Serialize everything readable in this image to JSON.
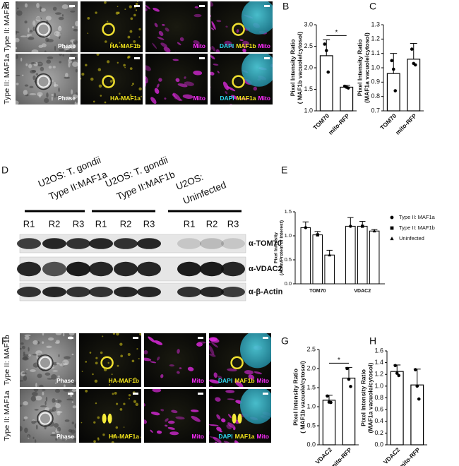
{
  "figure": {
    "A": {
      "label": "A",
      "rows": [
        {
          "title": "Type II: MAF1b",
          "captions": [
            [
              "Phase"
            ],
            [
              "HA-MAF1b"
            ],
            [
              "Mito"
            ],
            [
              "DAPI",
              "MAF1b",
              "Mito"
            ]
          ]
        },
        {
          "title": "Type II: MAF1a",
          "captions": [
            [
              "Phase"
            ],
            [
              "HA-MAF1a"
            ],
            [
              "Mito"
            ],
            [
              "DAPI",
              "MAF1a",
              "Mito"
            ]
          ]
        }
      ]
    },
    "D": {
      "label": "D",
      "groups": [
        {
          "lines": [
            "U2OS: T. gondii",
            "Type II:MAF1a"
          ],
          "lanes": [
            "R1",
            "R2",
            "R3"
          ]
        },
        {
          "lines": [
            "U2OS: T. gondii",
            "Type II:MAF1b"
          ],
          "lanes": [
            "R1",
            "R2",
            "R3"
          ]
        },
        {
          "lines": [
            "U2OS:",
            "Uninfected"
          ],
          "lanes": [
            "R1",
            "R2",
            "R3"
          ]
        }
      ],
      "blots": [
        "α-TOM70",
        "α-VDAC2",
        "α-β-Actin"
      ]
    },
    "F": {
      "label": "F",
      "rows": [
        {
          "title": "Type II: MAF1b",
          "captions": [
            [
              "Phase"
            ],
            [
              "HA-MAF1b"
            ],
            [
              "Mito"
            ],
            [
              "DAPI",
              "MAF1b",
              "Mito"
            ]
          ]
        },
        {
          "title": "Type II: MAF1a",
          "captions": [
            [
              "Phase"
            ],
            [
              "HA-MAF1a"
            ],
            [
              "Mito"
            ],
            [
              "DAPI",
              "MAF1a",
              "Mito"
            ]
          ]
        }
      ]
    }
  },
  "chart_data": [
    {
      "type": "bar",
      "label": "B",
      "ylabel": [
        "Pixel Intensity Ratio",
        "( MAF1b vacuole/cytosol)"
      ],
      "categories": [
        "TOM70",
        "mito-RFP"
      ],
      "values": [
        2.28,
        1.55
      ],
      "errors": [
        0.37,
        0.04
      ],
      "points": [
        [
          2.55,
          2.4,
          1.9
        ],
        [
          1.57,
          1.55,
          1.53
        ]
      ],
      "significance": "*",
      "ylim": [
        1.0,
        3.0
      ],
      "yticks": [
        {
          "value": 1.0,
          "label": "1.0"
        },
        1.5,
        {
          "value": 2.0,
          "label": "2.0"
        },
        2.5,
        {
          "value": 3.0,
          "label": "3.0"
        }
      ]
    },
    {
      "type": "bar",
      "label": "C",
      "ylabel": [
        "Pixel Intensity Ratio",
        "(MAF1a vacuole/cytosol)"
      ],
      "categories": [
        "TOM70",
        "mito-RFP"
      ],
      "values": [
        0.96,
        1.06
      ],
      "errors": [
        0.14,
        0.11
      ],
      "points": [
        [
          1.05,
          0.99,
          0.84
        ],
        [
          1.13,
          1.03,
          1.02
        ]
      ],
      "ylim": [
        0.7,
        1.3
      ],
      "yticks": [
        0.7,
        0.8,
        0.9,
        {
          "value": 1.0,
          "label": "1.0"
        },
        1.1,
        1.2,
        1.3
      ]
    },
    {
      "type": "grouped-bar",
      "label": "E",
      "ylabel": [
        "Pixel Intensity",
        "(Actin/Protein of Interest)"
      ],
      "categories": [
        "TOM70",
        "VDAC2"
      ],
      "legend": "right",
      "series": [
        {
          "name": "Type II: MAF1a",
          "marker": "circle",
          "values": [
            1.17,
            1.2
          ],
          "errors": [
            0.12,
            0.18
          ]
        },
        {
          "name": "Type II: MAF1b",
          "marker": "square",
          "values": [
            1.02,
            1.2
          ],
          "errors": [
            0.07,
            0.1
          ]
        },
        {
          "name": "Uninfected",
          "marker": "triangle",
          "values": [
            0.6,
            1.1
          ],
          "errors": [
            0.1,
            0.03
          ]
        }
      ],
      "ylim": [
        0.0,
        1.5
      ],
      "yticks": [
        {
          "value": 0.0,
          "label": "0.0"
        },
        0.5,
        {
          "value": 1.0,
          "label": "1.0"
        },
        1.5
      ]
    },
    {
      "type": "bar",
      "label": "G",
      "ylabel": [
        "Pixel Intensity Ratio",
        "( MAF1b vacuole/cytosol)"
      ],
      "categories": [
        "VDAC2",
        "mito-RFP"
      ],
      "values": [
        1.17,
        1.75
      ],
      "errors": [
        0.13,
        0.28
      ],
      "points": [
        [
          1.28,
          1.12,
          1.11
        ],
        [
          2.0,
          1.72,
          1.53
        ]
      ],
      "significance": "*",
      "ylim": [
        0.0,
        2.5
      ],
      "yticks": [
        {
          "value": 0.0,
          "label": "0.0"
        },
        0.5,
        {
          "value": 1.0,
          "label": "1.0"
        },
        1.5,
        {
          "value": 2.0,
          "label": "2.0"
        },
        2.5
      ]
    },
    {
      "type": "bar",
      "label": "H",
      "ylabel": [
        "Pixel Intensity Ratio",
        "(MAF1a vacuole/cytosol)"
      ],
      "categories": [
        "VDAC2",
        "mito-RFP"
      ],
      "values": [
        1.25,
        1.02
      ],
      "errors": [
        0.11,
        0.27
      ],
      "points": [
        [
          1.35,
          1.22,
          1.18
        ],
        [
          1.28,
          1.0,
          0.78
        ]
      ],
      "ylim": [
        0.0,
        1.6
      ],
      "yticks": [
        {
          "value": 0.0,
          "label": "0.0"
        },
        0.2,
        0.4,
        0.6,
        0.8,
        {
          "value": 1.0,
          "label": "1.0"
        },
        1.2,
        1.4,
        1.6
      ]
    }
  ]
}
